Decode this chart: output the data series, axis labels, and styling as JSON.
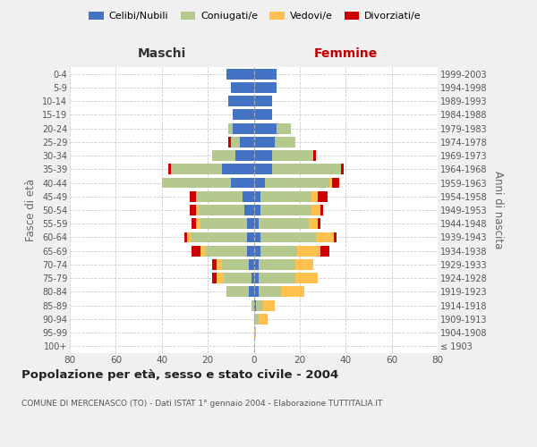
{
  "age_groups": [
    "100+",
    "95-99",
    "90-94",
    "85-89",
    "80-84",
    "75-79",
    "70-74",
    "65-69",
    "60-64",
    "55-59",
    "50-54",
    "45-49",
    "40-44",
    "35-39",
    "30-34",
    "25-29",
    "20-24",
    "15-19",
    "10-14",
    "5-9",
    "0-4"
  ],
  "birth_years": [
    "≤ 1903",
    "1904-1908",
    "1909-1913",
    "1914-1918",
    "1919-1923",
    "1924-1928",
    "1929-1933",
    "1934-1938",
    "1939-1943",
    "1944-1948",
    "1949-1953",
    "1954-1958",
    "1959-1963",
    "1964-1968",
    "1969-1973",
    "1974-1978",
    "1979-1983",
    "1984-1988",
    "1989-1993",
    "1994-1998",
    "1999-2003"
  ],
  "colors": {
    "celibi": "#4472c4",
    "coniugati": "#b5c98e",
    "vedovi": "#ffc04d",
    "divorziati": "#cc0000"
  },
  "males": {
    "celibi": [
      0,
      0,
      0,
      0,
      2,
      1,
      2,
      3,
      3,
      3,
      4,
      5,
      10,
      14,
      8,
      6,
      9,
      9,
      11,
      10,
      12
    ],
    "coniugati": [
      0,
      0,
      0,
      1,
      10,
      12,
      12,
      18,
      24,
      20,
      20,
      20,
      30,
      22,
      10,
      4,
      2,
      0,
      0,
      0,
      0
    ],
    "vedovi": [
      0,
      0,
      0,
      0,
      0,
      3,
      2,
      2,
      2,
      2,
      1,
      0,
      0,
      0,
      0,
      0,
      0,
      0,
      0,
      0,
      0
    ],
    "divorziati": [
      0,
      0,
      0,
      0,
      0,
      2,
      2,
      4,
      1,
      2,
      3,
      3,
      0,
      1,
      0,
      1,
      0,
      0,
      0,
      0,
      0
    ]
  },
  "females": {
    "nubili": [
      0,
      0,
      0,
      1,
      2,
      2,
      2,
      3,
      3,
      2,
      3,
      3,
      5,
      8,
      8,
      9,
      10,
      8,
      8,
      10,
      10
    ],
    "coniugate": [
      0,
      0,
      2,
      3,
      10,
      16,
      16,
      16,
      24,
      22,
      22,
      22,
      28,
      30,
      18,
      9,
      6,
      0,
      0,
      0,
      0
    ],
    "vedove": [
      0,
      1,
      4,
      5,
      10,
      10,
      8,
      10,
      8,
      4,
      4,
      3,
      1,
      0,
      0,
      0,
      0,
      0,
      0,
      0,
      0
    ],
    "divorziate": [
      0,
      0,
      0,
      0,
      0,
      0,
      0,
      4,
      1,
      1,
      1,
      4,
      3,
      1,
      1,
      0,
      0,
      0,
      0,
      0,
      0
    ]
  },
  "xlim": 80,
  "title": "Popolazione per età, sesso e stato civile - 2004",
  "subtitle": "COMUNE DI MERCENASCO (TO) - Dati ISTAT 1° gennaio 2004 - Elaborazione TUTTITALIA.IT",
  "ylabel_left": "Fasce di età",
  "ylabel_right": "Anni di nascita",
  "label_maschi": "Maschi",
  "label_femmine": "Femmine",
  "background_color": "#f0f0f0",
  "plot_bg": "#ffffff",
  "legend_labels": [
    "Celibi/Nubili",
    "Coniugati/e",
    "Vedovi/e",
    "Divorziati/e"
  ]
}
